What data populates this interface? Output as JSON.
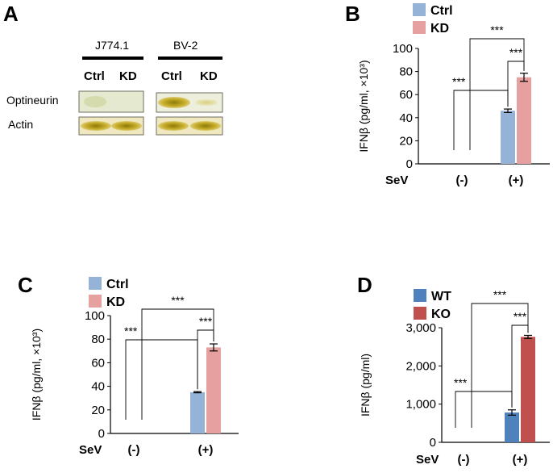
{
  "panels": {
    "a": {
      "letter": "A"
    },
    "b": {
      "letter": "B"
    },
    "c": {
      "letter": "C"
    },
    "d": {
      "letter": "D"
    }
  },
  "western_blot": {
    "cell_lines": [
      "J774.1",
      "BV-2"
    ],
    "lane_labels": [
      "Ctrl",
      "KD",
      "Ctrl",
      "KD"
    ],
    "rows": [
      "Optineurin",
      "Actin"
    ],
    "colors": {
      "band": "#c9b227",
      "band_dark": "#a38a10",
      "background": "#e7e7c9"
    }
  },
  "chart_data": [
    {
      "id": "B",
      "type": "bar",
      "categories": [
        "(-)",
        "(+)"
      ],
      "xlabel": "SeV",
      "ylabel": "IFNβ (pg/ml, ×10³)",
      "ylim": [
        0,
        100
      ],
      "yticks": [
        "0",
        "20",
        "40",
        "60",
        "80",
        "100"
      ],
      "ytick_values": [
        0,
        20,
        40,
        60,
        80,
        100
      ],
      "series": [
        {
          "name": "Ctrl",
          "color": "#95b3d7",
          "values": [
            0,
            46
          ],
          "errors": [
            0,
            1.5
          ]
        },
        {
          "name": "KD",
          "color": "#e6a0a0",
          "values": [
            0,
            75
          ],
          "errors": [
            0,
            3.5
          ]
        }
      ],
      "significance": [
        "***",
        "***",
        "***"
      ]
    },
    {
      "id": "C",
      "type": "bar",
      "categories": [
        "(-)",
        "(+)"
      ],
      "xlabel": "SeV",
      "ylabel": "IFNβ (pg/ml, ×10³)",
      "ylim": [
        0,
        100
      ],
      "yticks": [
        "0",
        "20",
        "40",
        "60",
        "80",
        "100"
      ],
      "ytick_values": [
        0,
        20,
        40,
        60,
        80,
        100
      ],
      "series": [
        {
          "name": "Ctrl",
          "color": "#95b3d7",
          "values": [
            0,
            35
          ],
          "errors": [
            0,
            0.5
          ]
        },
        {
          "name": "KD",
          "color": "#e6a0a0",
          "values": [
            0,
            73
          ],
          "errors": [
            0,
            3
          ]
        }
      ],
      "significance": [
        "***",
        "***",
        "***"
      ]
    },
    {
      "id": "D",
      "type": "bar",
      "categories": [
        "(-)",
        "(+)"
      ],
      "xlabel": "SeV",
      "ylabel": "IFNβ (pg/ml)",
      "ylim": [
        0,
        3000
      ],
      "yticks": [
        "0",
        "1,000",
        "2,000",
        "3,000"
      ],
      "ytick_values": [
        0,
        1000,
        2000,
        3000
      ],
      "series": [
        {
          "name": "WT",
          "color": "#4f81bd",
          "values": [
            0,
            780
          ],
          "errors": [
            0,
            70
          ]
        },
        {
          "name": "KO",
          "color": "#c0504d",
          "values": [
            0,
            2760
          ],
          "errors": [
            0,
            40
          ]
        }
      ],
      "significance": [
        "***",
        "***",
        "***"
      ]
    }
  ]
}
